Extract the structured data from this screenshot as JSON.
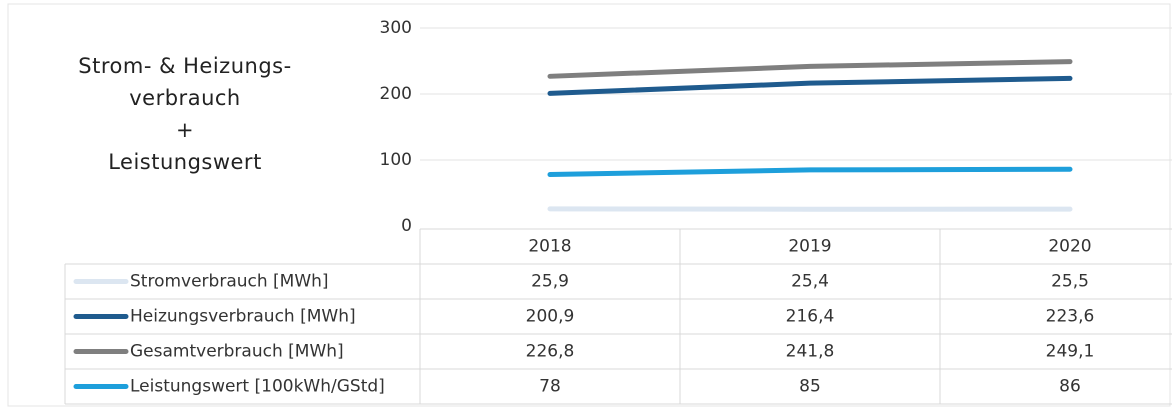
{
  "chart_data": {
    "type": "line",
    "title": "Strom- & Heizungs-\nverbrauch\n+\nLeistungswert",
    "categories": [
      "2018",
      "2019",
      "2020"
    ],
    "ylim": [
      0,
      300
    ],
    "yticks": [
      0,
      100,
      200,
      300
    ],
    "grid": true,
    "series": [
      {
        "name": "Stromverbrauch [MWh]",
        "color": "#dce6f1",
        "values": [
          25.9,
          25.4,
          25.5
        ],
        "value_labels": [
          "25,9",
          "25,4",
          "25,5"
        ]
      },
      {
        "name": "Heizungsverbrauch [MWh]",
        "color": "#1f5b8e",
        "values": [
          200.9,
          216.4,
          223.6
        ],
        "value_labels": [
          "200,9",
          "216,4",
          "223,6"
        ]
      },
      {
        "name": "Gesamtverbrauch [MWh]",
        "color": "#7f7f7f",
        "values": [
          226.8,
          241.8,
          249.1
        ],
        "value_labels": [
          "226,8",
          "241,8",
          "249,1"
        ]
      },
      {
        "name": "Leistungswert [100kWh/GStd]",
        "color": "#1e9fdb",
        "values": [
          78,
          85,
          86
        ]
      }
    ]
  }
}
